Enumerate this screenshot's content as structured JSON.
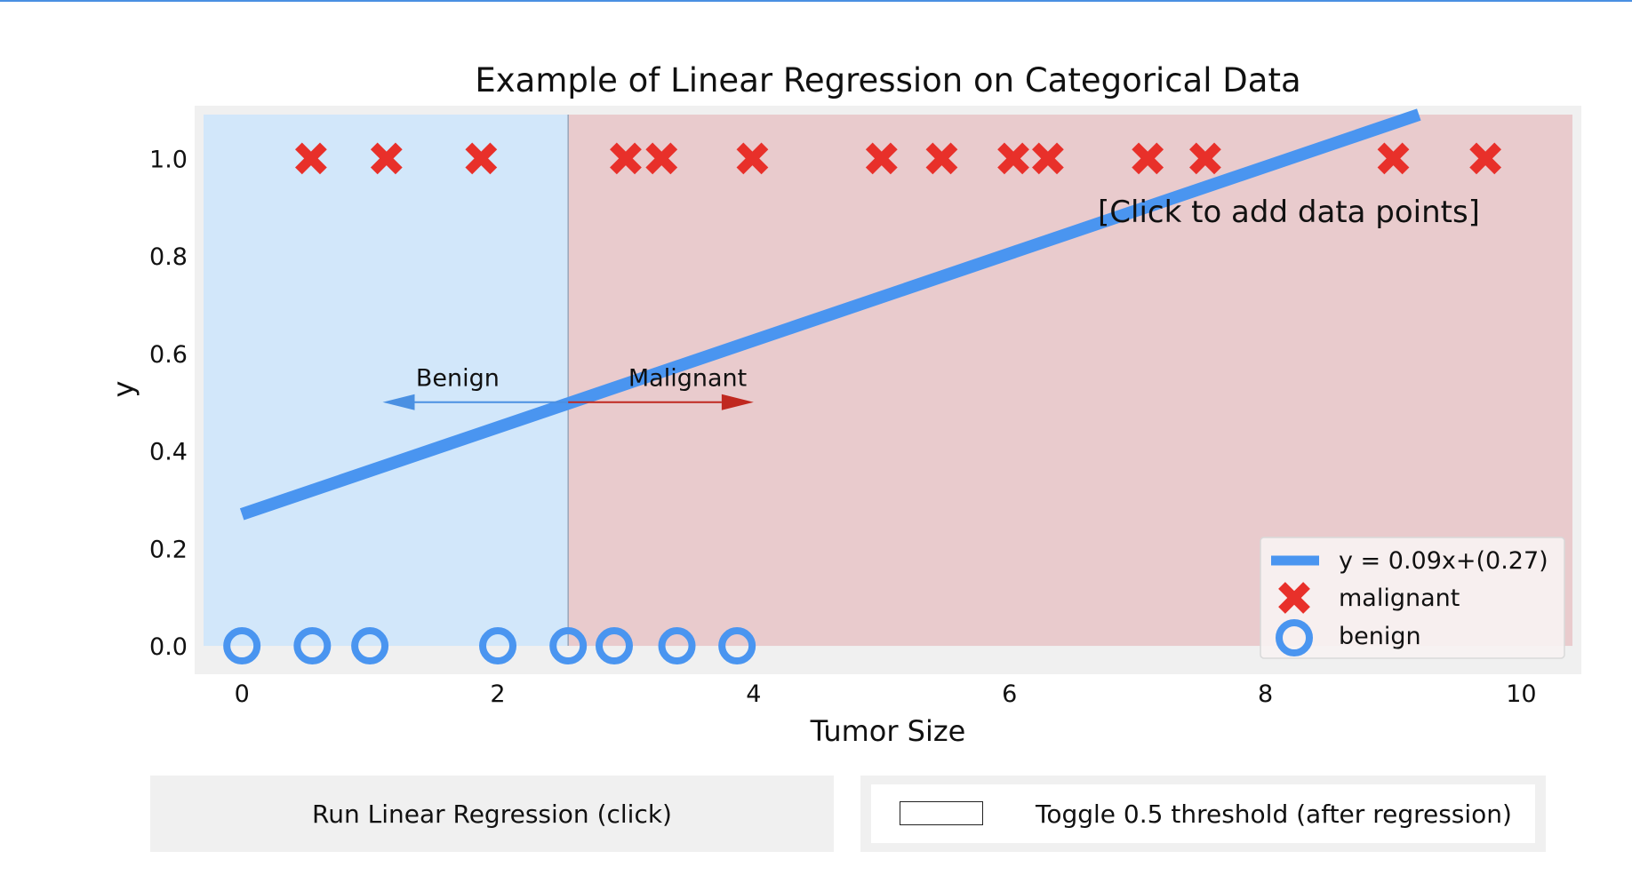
{
  "chart_data": {
    "type": "scatter",
    "title": "Example of Linear Regression on Categorical Data",
    "xlabel": "Tumor Size",
    "ylabel": "y",
    "xlim": [
      -0.3,
      10.4
    ],
    "ylim": [
      -0.04,
      1.09
    ],
    "x_ticks": [
      "0",
      "2",
      "4",
      "6",
      "8",
      "10"
    ],
    "y_ticks": [
      "0.0",
      "0.2",
      "0.4",
      "0.6",
      "0.8",
      "1.0"
    ],
    "grid": false,
    "legend_position": "lower-right",
    "annotation": "[Click to add data points]",
    "regions": [
      {
        "label": "Benign",
        "x_from": -0.3,
        "x_to": 2.55,
        "color": "#d2e7fa"
      },
      {
        "label": "Malignant",
        "x_from": 2.55,
        "x_to": 10.4,
        "color": "#e9cbcd"
      }
    ],
    "threshold_x": 2.55,
    "arrows": [
      {
        "label": "Benign",
        "x_from": 2.55,
        "x_to": 1.1,
        "y": 0.5,
        "color": "#4a90e2"
      },
      {
        "label": "Malignant",
        "x_from": 2.55,
        "x_to": 4.0,
        "y": 0.5,
        "color": "#c0281f"
      }
    ],
    "series": [
      {
        "name": "y = 0.09x+(0.27)",
        "kind": "line",
        "color": "#4a95f0",
        "x": [
          0,
          9.2
        ],
        "y": [
          0.27,
          1.09
        ]
      },
      {
        "name": "malignant",
        "kind": "x-marker",
        "color": "#e8302a",
        "x": [
          0.54,
          1.13,
          1.87,
          3.0,
          3.28,
          3.99,
          5.0,
          5.47,
          6.03,
          6.3,
          7.08,
          7.53,
          9.0,
          9.72
        ],
        "y": [
          1,
          1,
          1,
          1,
          1,
          1,
          1,
          1,
          1,
          1,
          1,
          1,
          1,
          1
        ]
      },
      {
        "name": "benign",
        "kind": "o-marker",
        "color": "#4a95f0",
        "x": [
          0.0,
          0.55,
          1.0,
          2.0,
          2.55,
          2.91,
          3.4,
          3.87
        ],
        "y": [
          0,
          0,
          0,
          0,
          0,
          0,
          0,
          0
        ]
      }
    ]
  },
  "controls": {
    "run_button": "Run Linear Regression (click)",
    "toggle_label": "Toggle 0.5 threshold (after regression)"
  }
}
